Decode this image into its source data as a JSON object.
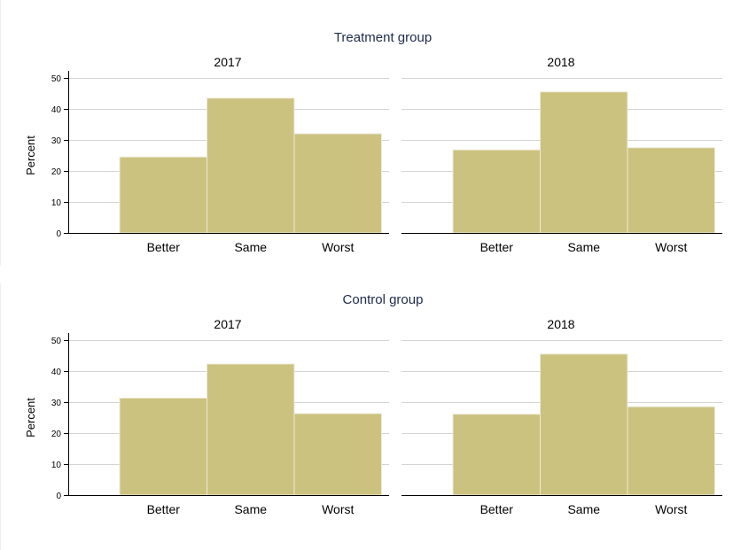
{
  "chart_data": [
    {
      "type": "bar",
      "group_title": "Treatment group",
      "ylabel": "Percent",
      "ylim": [
        0,
        50
      ],
      "yticks": [
        0,
        10,
        20,
        30,
        40,
        50
      ],
      "categories": [
        "Better",
        "Same",
        "Worst"
      ],
      "bar_color": "#cbc27f",
      "grid": true,
      "panels": [
        {
          "title": "2017",
          "values": [
            24.5,
            43.5,
            32.0
          ]
        },
        {
          "title": "2018",
          "values": [
            26.8,
            45.5,
            27.5
          ]
        }
      ]
    },
    {
      "type": "bar",
      "group_title": "Control group",
      "ylabel": "Percent",
      "ylim": [
        0,
        50
      ],
      "yticks": [
        0,
        10,
        20,
        30,
        40,
        50
      ],
      "categories": [
        "Better",
        "Same",
        "Worst"
      ],
      "bar_color": "#cbc27f",
      "grid": true,
      "panels": [
        {
          "title": "2017",
          "values": [
            31.3,
            42.3,
            26.3
          ]
        },
        {
          "title": "2018",
          "values": [
            26.1,
            45.5,
            28.5
          ]
        }
      ]
    }
  ]
}
